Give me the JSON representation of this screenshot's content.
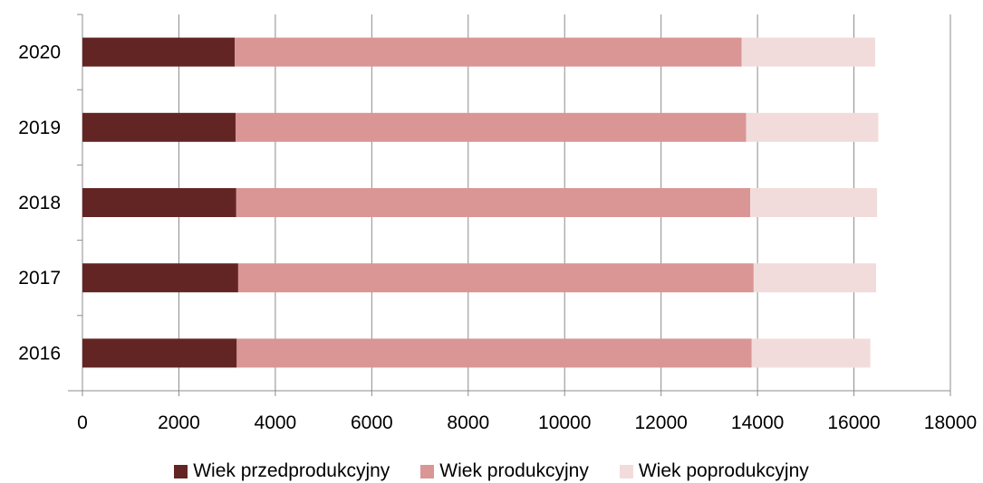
{
  "chart_data": {
    "type": "bar",
    "orientation": "horizontal",
    "stacked": true,
    "categories": [
      "2020",
      "2019",
      "2018",
      "2017",
      "2016"
    ],
    "series": [
      {
        "name": "Wiek przedprodukcyjny",
        "color": "#632523",
        "values": [
          3160,
          3175,
          3190,
          3230,
          3200
        ]
      },
      {
        "name": "Wiek produkcyjny",
        "color": "#d99694",
        "values": [
          10510,
          10590,
          10660,
          10690,
          10680
        ]
      },
      {
        "name": "Wiek poprodukcyjny",
        "color": "#f2dcdb",
        "values": [
          2770,
          2740,
          2630,
          2540,
          2460
        ]
      }
    ],
    "xlim": [
      0,
      18000
    ],
    "x_ticks": [
      "0",
      "2000",
      "4000",
      "6000",
      "8000",
      "10000",
      "12000",
      "14000",
      "16000",
      "18000"
    ],
    "grid": "vertical",
    "legend_position": "bottom",
    "title": "",
    "xlabel": "",
    "ylabel": ""
  }
}
